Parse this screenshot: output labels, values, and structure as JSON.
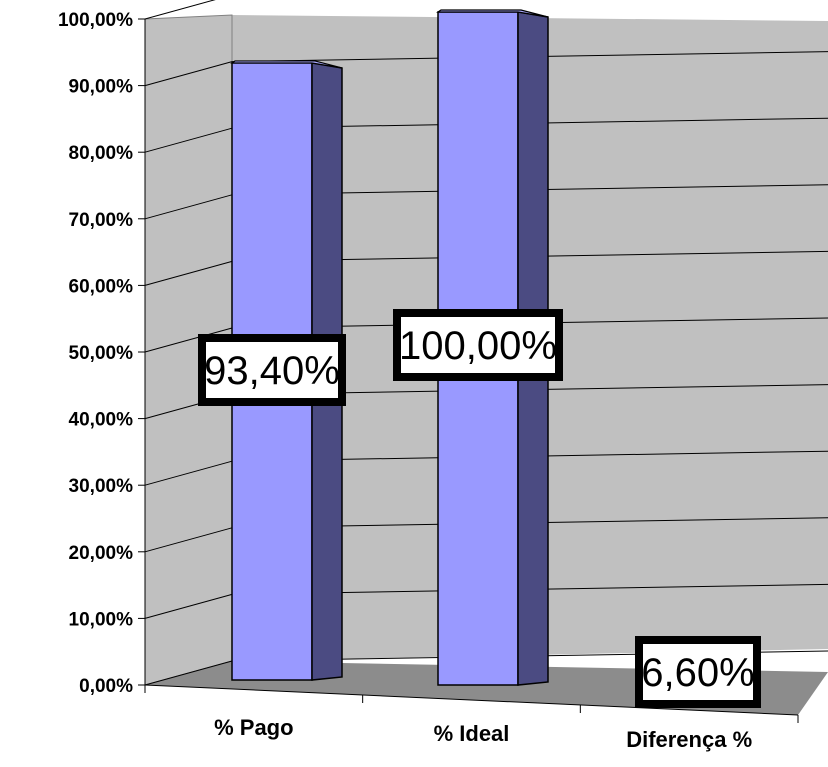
{
  "chart_data": {
    "type": "bar",
    "categories": [
      "% Pago",
      "% Ideal",
      "Diferença %"
    ],
    "values": [
      93.4,
      100.0,
      6.6
    ],
    "data_labels": [
      "93,40%",
      "100,00%",
      "6,60%"
    ],
    "ylim": [
      0,
      100
    ],
    "y_ticks": [
      "0,00%",
      "10,00%",
      "20,00%",
      "30,00%",
      "40,00%",
      "50,00%",
      "60,00%",
      "70,00%",
      "80,00%",
      "90,00%",
      "100,00%"
    ],
    "title": "",
    "xlabel": "",
    "ylabel": "",
    "grid": true,
    "legend": "none",
    "colors": {
      "bar_front": "#9999ff",
      "bar_side": "#4b4b82",
      "bar_top": "#aaaaff",
      "wall": "#c0c0c0",
      "floor": "#8c8c8c",
      "gridline": "#000000"
    }
  }
}
